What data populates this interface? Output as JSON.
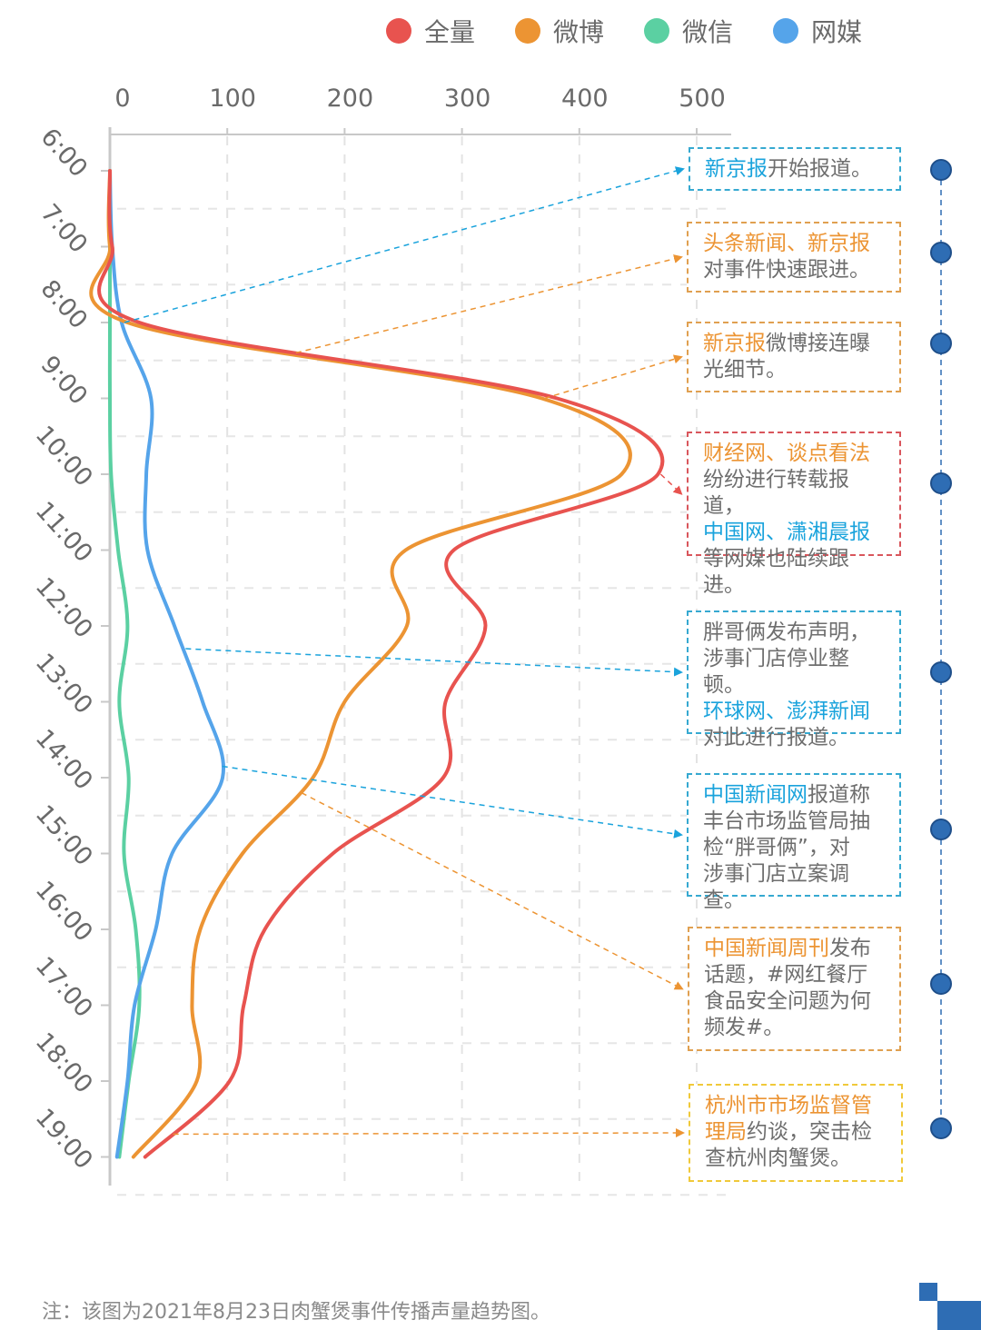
{
  "chart_data": {
    "type": "line",
    "orientation": "horizontal-time-axis-vertical",
    "title": "",
    "xlabel": "",
    "ylabel": "",
    "xlim": [
      0,
      500
    ],
    "x_ticks": [
      "0",
      "100",
      "200",
      "300",
      "400",
      "500"
    ],
    "x_tick_values": [
      0,
      100,
      200,
      300,
      400,
      500
    ],
    "categories": [
      "6:00",
      "7:00",
      "8:00",
      "9:00",
      "10:00",
      "11:00",
      "12:00",
      "13:00",
      "14:00",
      "15:00",
      "16:00",
      "17:00",
      "18:00",
      "19:00"
    ],
    "grid": true,
    "legend_position": "top-right",
    "series": [
      {
        "name": "全量",
        "color": "#e8534f",
        "values": [
          0,
          2,
          25,
          381,
          467,
          293,
          320,
          286,
          284,
          190,
          132,
          114,
          102,
          30
        ]
      },
      {
        "name": "微博",
        "color": "#ec9433",
        "values": [
          0,
          0,
          15,
          368,
          436,
          252,
          253,
          200,
          173,
          113,
          77,
          70,
          74,
          20
        ]
      },
      {
        "name": "微信",
        "color": "#5bd0a2",
        "values": [
          0,
          0,
          0,
          0,
          1,
          7,
          15,
          8,
          16,
          12,
          22,
          25,
          16,
          8
        ]
      },
      {
        "name": "网媒",
        "color": "#55a4ea",
        "values": [
          0,
          2,
          10,
          35,
          31,
          32,
          55,
          79,
          96,
          53,
          39,
          21,
          15,
          6
        ]
      }
    ]
  },
  "annotations": [
    {
      "id": "a1",
      "border": "#36a9d1",
      "arrow": "#1aa3dc",
      "segments": [
        {
          "text": "新京报",
          "color": "#1aa3dc"
        },
        {
          "text": "开始报道。",
          "color": "#6e6e6e"
        }
      ],
      "from_time": 8.0,
      "from_series": "网媒"
    },
    {
      "id": "a2",
      "border": "#e0a050",
      "arrow": "#ec9433",
      "segments": [
        {
          "text": "头条新闻、新京报\n",
          "color": "#ec9433"
        },
        {
          "text": "对事件快速跟进。",
          "color": "#6e6e6e"
        }
      ],
      "from_time": 8.4,
      "from_series": "微博"
    },
    {
      "id": "a3",
      "border": "#e0a050",
      "arrow": "#ec9433",
      "segments": [
        {
          "text": "新京报",
          "color": "#ec9433"
        },
        {
          "text": "微博接连曝\n光细节。",
          "color": "#6e6e6e"
        }
      ],
      "from_time": 9.0,
      "from_series": "微博"
    },
    {
      "id": "a4",
      "border": "#d9565c",
      "arrow": "#e8534f",
      "segments": [
        {
          "text": "财经网、谈点看法\n",
          "color": "#ec9433"
        },
        {
          "text": "纷纷进行转载报道，\n",
          "color": "#6e6e6e"
        },
        {
          "text": "中国网、潇湘晨报\n",
          "color": "#1aa3dc"
        },
        {
          "text": "等网媒也陆续跟进。",
          "color": "#6e6e6e"
        }
      ],
      "from_time": 10.0,
      "from_series": "全量"
    },
    {
      "id": "a5",
      "border": "#36a9d1",
      "arrow": "#1aa3dc",
      "segments": [
        {
          "text": "胖哥俩发布声明，\n涉事门店停业整顿。\n",
          "color": "#6e6e6e"
        },
        {
          "text": "环球网、澎湃新闻\n",
          "color": "#1aa3dc"
        },
        {
          "text": "对此进行报道。",
          "color": "#6e6e6e"
        }
      ],
      "from_time": 12.3,
      "from_series": "网媒"
    },
    {
      "id": "a6",
      "border": "#36a9d1",
      "arrow": "#1aa3dc",
      "segments": [
        {
          "text": "中国新闻网",
          "color": "#1aa3dc"
        },
        {
          "text": "报道称\n丰台市场监管局抽\n检“胖哥俩”，对\n涉事门店立案调查。",
          "color": "#6e6e6e"
        }
      ],
      "from_time": 13.85,
      "from_series": "网媒"
    },
    {
      "id": "a7",
      "border": "#e0a050",
      "arrow": "#ec9433",
      "segments": [
        {
          "text": "中国新闻周刊",
          "color": "#ec9433"
        },
        {
          "text": "发布\n话题，#网红餐厅\n食品安全问题为何\n频发#。",
          "color": "#6e6e6e"
        }
      ],
      "from_time": 14.2,
      "from_series": "微博"
    },
    {
      "id": "a8",
      "border": "#f0c93a",
      "arrow": "#ec9433",
      "segments": [
        {
          "text": "杭州市市场监督管\n理局",
          "color": "#ec9433"
        },
        {
          "text": "约谈，突击检\n查杭州肉蟹煲。",
          "color": "#6e6e6e"
        }
      ],
      "from_time": 18.7,
      "from_series": "全量"
    }
  ],
  "timeline": {
    "color": "#2e6db4",
    "dot_count": 8
  },
  "footnote": "注：该图为2021年8月23日肉蟹煲事件传播声量趋势图。"
}
